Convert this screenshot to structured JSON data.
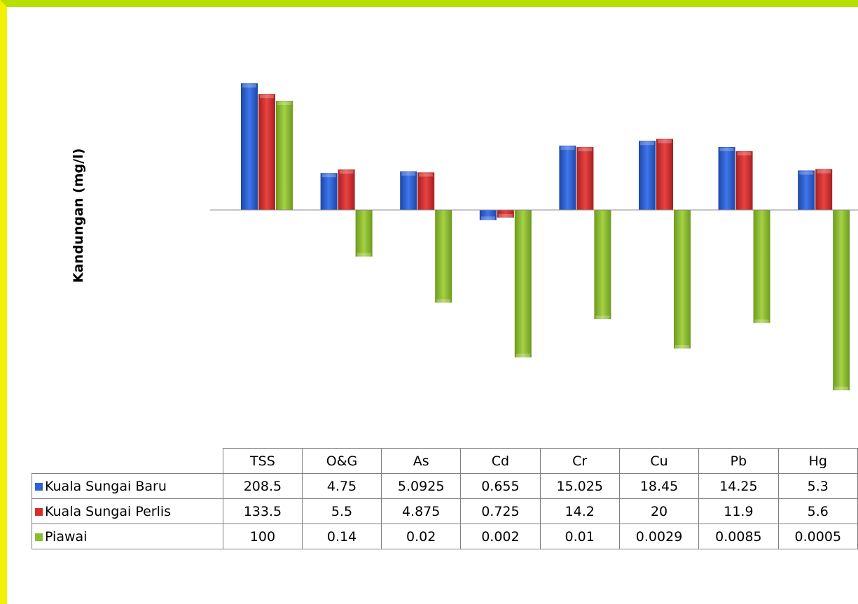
{
  "chart_data": {
    "type": "bar",
    "ylabel": "Kandungan (mg/l)",
    "yscale": "log",
    "categories": [
      "TSS",
      "O&G",
      "As",
      "Cd",
      "Cr",
      "Cu",
      "Pb",
      "Hg"
    ],
    "series": [
      {
        "name": "Kuala Sungai Baru",
        "color": "#2e62d6",
        "values": [
          208.5,
          4.75,
          5.0925,
          0.655,
          15.025,
          18.45,
          14.25,
          5.3
        ],
        "labels": [
          "208.5",
          "4.75",
          "5.0925",
          "0.655",
          "15.025",
          "18.45",
          "14.25",
          "5.3"
        ]
      },
      {
        "name": "Kuala Sungai Perlis",
        "color": "#d62d2d",
        "values": [
          133.5,
          5.5,
          4.875,
          0.725,
          14.2,
          20,
          11.9,
          5.6
        ],
        "labels": [
          "133.5",
          "5.5",
          "4.875",
          "0.725",
          "14.2",
          "20",
          "11.9",
          "5.6"
        ]
      },
      {
        "name": "Piawai",
        "color": "#8cbd2c",
        "values": [
          100,
          0.14,
          0.02,
          0.002,
          0.01,
          0.0029,
          0.0085,
          0.0005
        ],
        "labels": [
          "100",
          "0.14",
          "0.02",
          "0.002",
          "0.01",
          "0.0029",
          "0.0085",
          "0.0005"
        ]
      }
    ],
    "legend": "data-table-below",
    "grid": false
  }
}
